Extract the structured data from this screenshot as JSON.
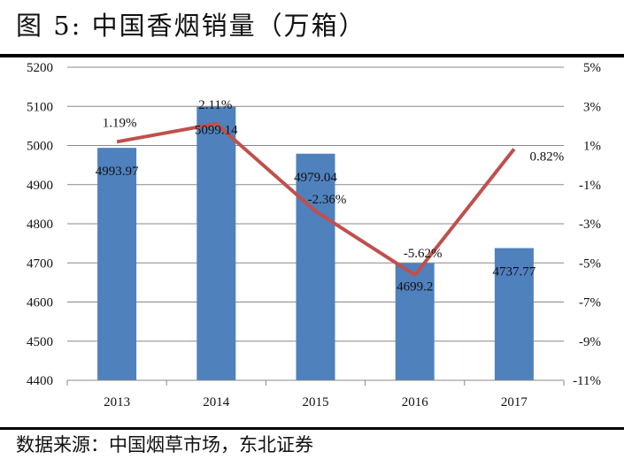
{
  "header": {
    "title": "图 5:  中国香烟销量（万箱）"
  },
  "footer": {
    "source": "数据来源：中国烟草市场，东北证券"
  },
  "chart_data": {
    "type": "bar+line",
    "title": "",
    "categories": [
      "2013",
      "2014",
      "2015",
      "2016",
      "2017"
    ],
    "series": [
      {
        "type": "bar",
        "axis": "left",
        "values": [
          4993.97,
          5099.14,
          4979.04,
          4699.2,
          4737.77
        ],
        "labels": [
          "4993.97",
          "5099.14",
          "4979.04",
          "4699.2",
          "4737.77"
        ],
        "color": "#4f81bd"
      },
      {
        "type": "line",
        "axis": "right",
        "values": [
          1.19,
          2.11,
          -2.36,
          -5.62,
          0.82
        ],
        "labels": [
          "1.19%",
          "2.11%",
          "-2.36%",
          "-5.62%",
          "0.82%"
        ],
        "color": "#c0504d"
      }
    ],
    "left_axis": {
      "ylim": [
        4400,
        5200
      ],
      "ticks": [
        "4400",
        "4500",
        "4600",
        "4700",
        "4800",
        "4900",
        "5000",
        "5100",
        "5200"
      ]
    },
    "right_axis": {
      "ylim": [
        -11,
        5
      ],
      "ticks": [
        "-11%",
        "-9%",
        "-7%",
        "-5%",
        "-3%",
        "-1%",
        "1%",
        "3%",
        "5%"
      ]
    },
    "grid": true,
    "legend": "none"
  }
}
